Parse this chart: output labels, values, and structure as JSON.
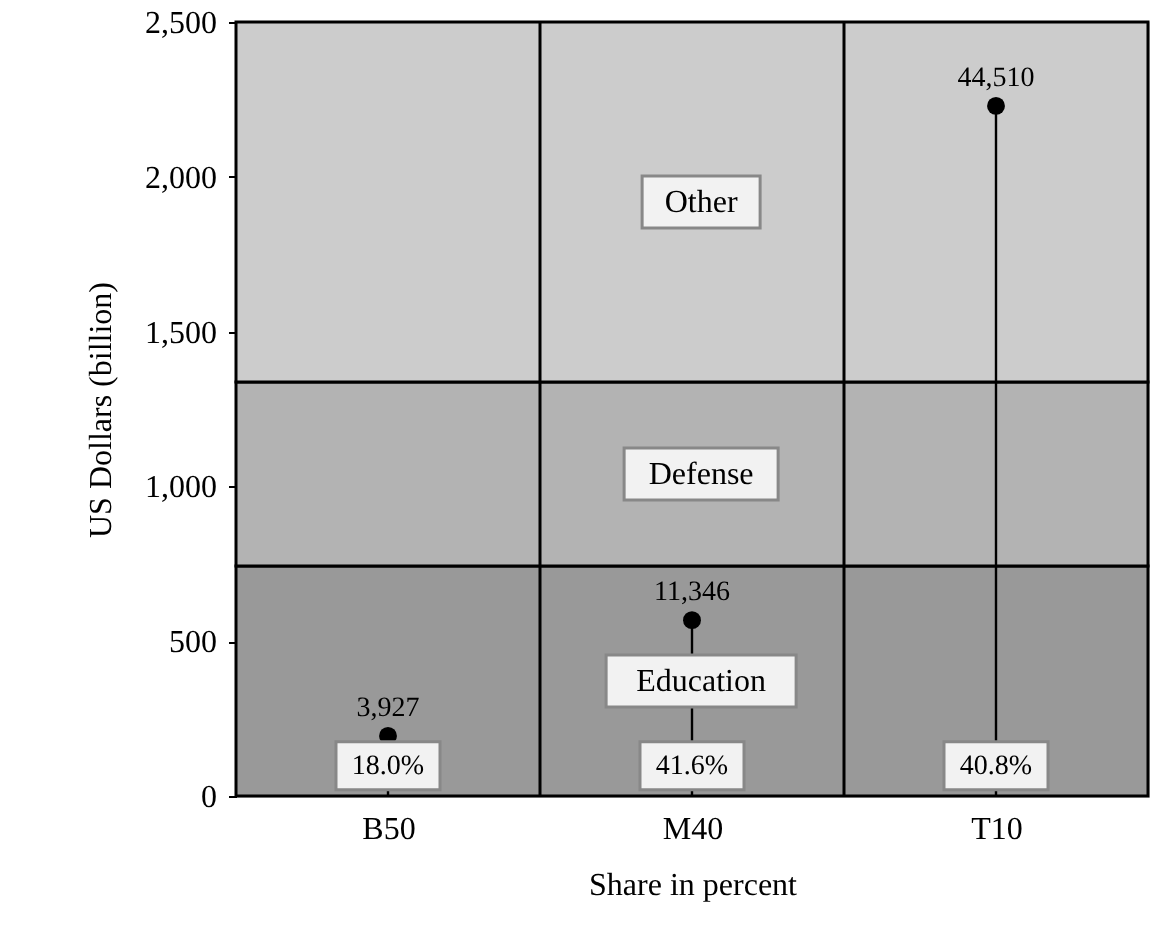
{
  "chart_data": {
    "type": "lollipop",
    "xlabel": "Share in percent",
    "ylabel": "US Dollars (billion)",
    "categories": [
      "B50",
      "M40",
      "T10"
    ],
    "series": [
      {
        "color": "#000000",
        "values": [
          194,
          568,
          2229
        ]
      }
    ],
    "ylim": [
      0,
      2500
    ],
    "yticks": [
      0,
      500,
      {
        "value": 1000,
        "label": "1,000"
      },
      {
        "value": 1500,
        "label": "1,500"
      },
      {
        "value": 2000,
        "label": "2,000"
      },
      {
        "value": 2500,
        "label": "2,500"
      }
    ],
    "bands": [
      {
        "axis": "y",
        "from": 0,
        "to": 743,
        "label": "Education",
        "color": "#999999"
      },
      {
        "axis": "y",
        "from": 743,
        "to": 1337,
        "label": "Defense",
        "color": "#b3b3b3"
      },
      {
        "axis": "y",
        "from": 1337,
        "to": 2500,
        "label": "Other",
        "color": "#cccccc"
      }
    ],
    "annotations": [
      {
        "text": "3,927",
        "x": "B50",
        "y": 194
      },
      {
        "text": "11,346",
        "x": "M40",
        "y": 568
      },
      {
        "text": "44,510",
        "x": "T10",
        "y": 2229
      },
      "18.0%",
      "41.6%",
      "40.8%"
    ],
    "grid": "x",
    "marker": "circle"
  }
}
